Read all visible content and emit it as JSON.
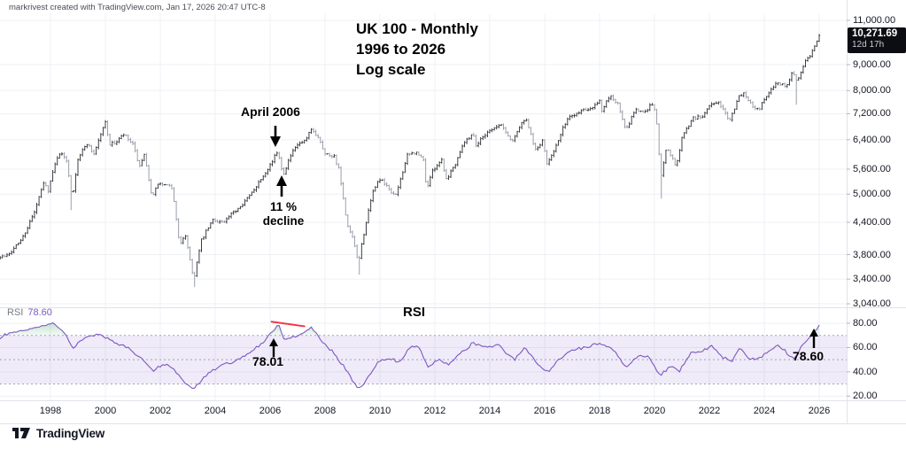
{
  "attribution": "markrivest created with TradingView.com, Jan 17, 2026 20:47 UTC-8",
  "title": {
    "line1": "UK 100 - Monthly",
    "line2": "1996 to 2026",
    "line3": "Log scale"
  },
  "annotations": {
    "april_2006": "April 2006",
    "decline_pct": "11 %",
    "decline_word": "decline",
    "rsi_heading": "RSI",
    "rsi_value_2006": "78.01",
    "rsi_value_now": "78.60"
  },
  "price_axis": {
    "labels": [
      "11,000.00",
      "9,000.00",
      "8,000.00",
      "7,200.00",
      "6,400.00",
      "5,600.00",
      "5,000.00",
      "4,400.00",
      "3,800.00",
      "3,400.00",
      "3,040.00"
    ],
    "values": [
      11000,
      9000,
      8000,
      7200,
      6400,
      5600,
      5000,
      4400,
      3800,
      3400,
      3040
    ],
    "last_price_label": "10,271.69",
    "countdown": "12d 17h"
  },
  "time_axis": {
    "years": [
      1998,
      2000,
      2002,
      2004,
      2006,
      2008,
      2010,
      2012,
      2014,
      2016,
      2018,
      2020,
      2022,
      2024,
      2026
    ]
  },
  "rsi_panel": {
    "indicator_label": "RSI",
    "indicator_value": "78.60",
    "axis_labels": [
      "80.00",
      "60.00",
      "40.00",
      "20.00"
    ],
    "axis_values": [
      80,
      60,
      40,
      20
    ],
    "bands": [
      70,
      50,
      30
    ]
  },
  "footer": {
    "brand": "TradingView"
  },
  "colors": {
    "bar_up": "#2a2b31",
    "bar_down": "#9094a0",
    "grid": "#eef0f5",
    "separator": "#e0e3eb",
    "tick": "#b2b5be",
    "rsi_line": "#7e57c2",
    "rsi_band_fill": "rgba(126,87,194,0.12)",
    "band_dash": "#8b8fa3",
    "overbought_green": "#2f9e55",
    "trend_red": "#f23645",
    "badge_bg": "#0c0d12",
    "axis_text": "#131722"
  },
  "chart_data": {
    "type": "ohlc-bar",
    "symbol": "UK 100",
    "timeframe": "Monthly",
    "scale": "log",
    "x_domain": [
      1996,
      2026.2
    ],
    "price_domain_labels": [
      11000,
      3040
    ],
    "last_price": 10271.69,
    "price_keypoints": [
      [
        1996.0,
        3710
      ],
      [
        1996.33,
        3780
      ],
      [
        1996.67,
        3900
      ],
      [
        1997.0,
        4120
      ],
      [
        1997.42,
        4600
      ],
      [
        1997.75,
        5250
      ],
      [
        1997.92,
        5100
      ],
      [
        1998.3,
        6050
      ],
      [
        1998.58,
        5850
      ],
      [
        1998.79,
        4900
      ],
      [
        1999.0,
        5880
      ],
      [
        1999.33,
        6300
      ],
      [
        1999.58,
        6000
      ],
      [
        2000.0,
        6930
      ],
      [
        2000.17,
        6250
      ],
      [
        2000.42,
        6350
      ],
      [
        2000.67,
        6550
      ],
      [
        2001.0,
        6250
      ],
      [
        2001.25,
        5650
      ],
      [
        2001.42,
        5950
      ],
      [
        2001.71,
        4900
      ],
      [
        2001.92,
        5250
      ],
      [
        2002.17,
        5200
      ],
      [
        2002.42,
        5150
      ],
      [
        2002.71,
        3950
      ],
      [
        2002.92,
        4150
      ],
      [
        2003.21,
        3380
      ],
      [
        2003.5,
        4050
      ],
      [
        2003.92,
        4450
      ],
      [
        2004.33,
        4400
      ],
      [
        2004.75,
        4650
      ],
      [
        2005.25,
        4950
      ],
      [
        2005.75,
        5450
      ],
      [
        2006.08,
        5800
      ],
      [
        2006.29,
        6100
      ],
      [
        2006.46,
        5450
      ],
      [
        2006.75,
        5950
      ],
      [
        2007.0,
        6250
      ],
      [
        2007.29,
        6350
      ],
      [
        2007.5,
        6700
      ],
      [
        2007.79,
        6450
      ],
      [
        2008.0,
        6000
      ],
      [
        2008.33,
        5950
      ],
      [
        2008.5,
        5600
      ],
      [
        2008.79,
        4350
      ],
      [
        2009.0,
        4100
      ],
      [
        2009.21,
        3650
      ],
      [
        2009.5,
        4400
      ],
      [
        2009.79,
        5150
      ],
      [
        2010.0,
        5350
      ],
      [
        2010.42,
        5050
      ],
      [
        2010.58,
        4950
      ],
      [
        2011.0,
        5950
      ],
      [
        2011.29,
        6050
      ],
      [
        2011.58,
        5850
      ],
      [
        2011.71,
        5050
      ],
      [
        2011.79,
        5350
      ],
      [
        2012.0,
        5650
      ],
      [
        2012.25,
        5850
      ],
      [
        2012.42,
        5350
      ],
      [
        2012.75,
        5750
      ],
      [
        2013.0,
        6250
      ],
      [
        2013.38,
        6600
      ],
      [
        2013.5,
        6250
      ],
      [
        2013.92,
        6650
      ],
      [
        2014.42,
        6850
      ],
      [
        2014.79,
        6350
      ],
      [
        2015.0,
        6650
      ],
      [
        2015.29,
        7050
      ],
      [
        2015.67,
        6100
      ],
      [
        2015.92,
        6350
      ],
      [
        2016.08,
        5750
      ],
      [
        2016.5,
        6350
      ],
      [
        2016.79,
        7000
      ],
      [
        2017.0,
        7150
      ],
      [
        2017.42,
        7350
      ],
      [
        2017.67,
        7400
      ],
      [
        2018.0,
        7650
      ],
      [
        2018.08,
        7250
      ],
      [
        2018.38,
        7850
      ],
      [
        2018.67,
        7500
      ],
      [
        2018.96,
        6650
      ],
      [
        2019.29,
        7350
      ],
      [
        2019.58,
        7250
      ],
      [
        2019.96,
        7550
      ],
      [
        2020.13,
        6600
      ],
      [
        2020.21,
        5300
      ],
      [
        2020.42,
        6150
      ],
      [
        2020.58,
        6000
      ],
      [
        2020.79,
        5650
      ],
      [
        2021.0,
        6450
      ],
      [
        2021.38,
        7050
      ],
      [
        2021.75,
        7100
      ],
      [
        2022.04,
        7550
      ],
      [
        2022.38,
        7550
      ],
      [
        2022.58,
        7200
      ],
      [
        2022.75,
        6950
      ],
      [
        2023.04,
        7750
      ],
      [
        2023.29,
        7900
      ],
      [
        2023.58,
        7450
      ],
      [
        2023.79,
        7350
      ],
      [
        2024.0,
        7650
      ],
      [
        2024.38,
        8250
      ],
      [
        2024.63,
        8250
      ],
      [
        2024.79,
        8150
      ],
      [
        2025.0,
        8650
      ],
      [
        2025.13,
        8550
      ],
      [
        2025.21,
        8300
      ],
      [
        2025.33,
        8750
      ],
      [
        2025.5,
        9150
      ],
      [
        2025.71,
        9500
      ],
      [
        2025.88,
        9850
      ],
      [
        2026.04,
        10271.69
      ]
    ],
    "extra_wick_lows": [
      [
        1998.79,
        4650
      ],
      [
        2003.21,
        3280
      ],
      [
        2009.21,
        3470
      ],
      [
        2020.21,
        4900
      ],
      [
        2025.17,
        7500
      ]
    ],
    "rsi": {
      "type": "line",
      "range": [
        0,
        100
      ],
      "overbought": 70,
      "midline": 50,
      "oversold": 30,
      "current": 78.6,
      "peak_april_2006": 78.01,
      "trendline": {
        "from": [
          2006.05,
          81.3
        ],
        "to": [
          2007.25,
          77.5
        ]
      },
      "keypoints": [
        [
          1996.0,
          66
        ],
        [
          1996.4,
          71
        ],
        [
          1997.0,
          74
        ],
        [
          1997.6,
          77
        ],
        [
          1998.1,
          80
        ],
        [
          1998.5,
          72
        ],
        [
          1998.8,
          60
        ],
        [
          1999.2,
          67
        ],
        [
          1999.8,
          71
        ],
        [
          2000.3,
          64
        ],
        [
          2000.8,
          60
        ],
        [
          2001.3,
          52
        ],
        [
          2001.75,
          40
        ],
        [
          2002.1,
          47
        ],
        [
          2002.5,
          42
        ],
        [
          2002.8,
          33
        ],
        [
          2003.2,
          25
        ],
        [
          2003.7,
          38
        ],
        [
          2004.3,
          46
        ],
        [
          2004.9,
          50
        ],
        [
          2005.5,
          60
        ],
        [
          2005.9,
          68
        ],
        [
          2006.29,
          78.01
        ],
        [
          2006.55,
          66
        ],
        [
          2006.9,
          69
        ],
        [
          2007.2,
          71
        ],
        [
          2007.5,
          77
        ],
        [
          2007.9,
          64
        ],
        [
          2008.3,
          56
        ],
        [
          2008.7,
          44
        ],
        [
          2009.0,
          33
        ],
        [
          2009.25,
          26
        ],
        [
          2009.6,
          36
        ],
        [
          2009.9,
          48
        ],
        [
          2010.3,
          52
        ],
        [
          2010.7,
          48
        ],
        [
          2011.1,
          60
        ],
        [
          2011.4,
          62
        ],
        [
          2011.75,
          43
        ],
        [
          2012.1,
          50
        ],
        [
          2012.5,
          46
        ],
        [
          2012.9,
          54
        ],
        [
          2013.4,
          64
        ],
        [
          2013.8,
          60
        ],
        [
          2014.3,
          62
        ],
        [
          2014.9,
          50
        ],
        [
          2015.3,
          60
        ],
        [
          2015.8,
          45
        ],
        [
          2016.15,
          40
        ],
        [
          2016.6,
          52
        ],
        [
          2017.0,
          58
        ],
        [
          2017.5,
          60
        ],
        [
          2018.0,
          64
        ],
        [
          2018.5,
          58
        ],
        [
          2018.96,
          43
        ],
        [
          2019.4,
          54
        ],
        [
          2019.8,
          52
        ],
        [
          2020.2,
          37
        ],
        [
          2020.6,
          45
        ],
        [
          2020.9,
          40
        ],
        [
          2021.3,
          55
        ],
        [
          2021.8,
          58
        ],
        [
          2022.1,
          61
        ],
        [
          2022.5,
          52
        ],
        [
          2022.8,
          48
        ],
        [
          2023.1,
          59
        ],
        [
          2023.5,
          50
        ],
        [
          2023.9,
          52
        ],
        [
          2024.2,
          58
        ],
        [
          2024.5,
          63
        ],
        [
          2024.8,
          56
        ],
        [
          2025.1,
          50
        ],
        [
          2025.4,
          62
        ],
        [
          2025.7,
          70
        ],
        [
          2026.04,
          78.6
        ]
      ]
    }
  }
}
